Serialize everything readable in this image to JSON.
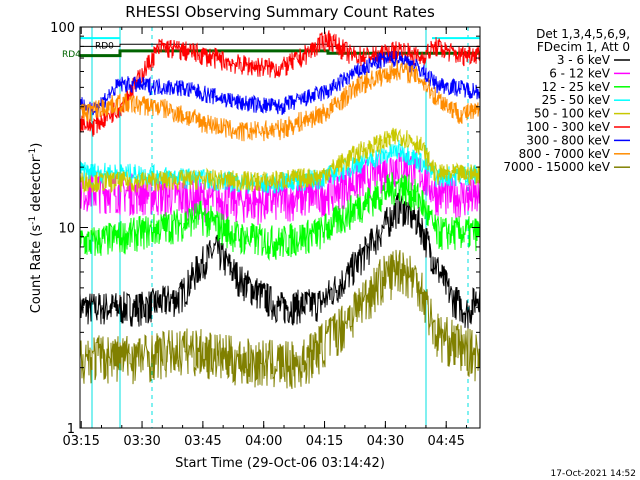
{
  "chart_data": {
    "type": "line",
    "title": "RHESSI Observing Summary Count Rates",
    "xlabel": "Start Time (29-Oct-06 03:14:42)",
    "ylabel": "Count Rate (s",
    "ylabel_sup": "-1",
    "ylabel_tail": " detector",
    "ylabel_close": ")",
    "y_scale": "log",
    "ylim": [
      1,
      100
    ],
    "xlim": [
      "03:14:42",
      "04:53:20"
    ],
    "x_ticks": [
      "03:15",
      "03:30",
      "03:45",
      "04:00",
      "04:15",
      "04:30",
      "04:45"
    ],
    "y_ticks": [
      "1",
      "10",
      "100"
    ],
    "timestamp": "17-Oct-2021 14:52",
    "legend_header": [
      "Det 1,3,4,5,6,9,",
      "FDecim 1, Att 0"
    ],
    "legend_placement": "right",
    "flags": [
      {
        "label": "RD0",
        "color": "#000000"
      },
      {
        "label": "RD4",
        "color": "#006400"
      }
    ],
    "series": [
      {
        "name": "3 - 6 keV",
        "color": "#000000",
        "values": [
          [
            15,
            4.0
          ],
          [
            25,
            4.5
          ],
          [
            30,
            6.5
          ],
          [
            34,
            7.8
          ],
          [
            40,
            5.5
          ],
          [
            50,
            4.0
          ],
          [
            60,
            4.2
          ],
          [
            66,
            5.5
          ],
          [
            75,
            9.5
          ],
          [
            80,
            13.0
          ],
          [
            85,
            10.5
          ],
          [
            89,
            6.5
          ],
          [
            93,
            4.5
          ],
          [
            97,
            3.8
          ],
          [
            100,
            4.8
          ]
        ]
      },
      {
        "name": "6 - 12 keV",
        "color": "#ff00ff",
        "values": [
          [
            3,
            15.5
          ],
          [
            15,
            15.0
          ],
          [
            30,
            14.0
          ],
          [
            45,
            13.5
          ],
          [
            60,
            14.5
          ],
          [
            70,
            17.5
          ],
          [
            80,
            21.0
          ],
          [
            85,
            19.0
          ],
          [
            89,
            15.0
          ],
          [
            100,
            14.0
          ]
        ]
      },
      {
        "name": "12 - 25 keV",
        "color": "#00ff00",
        "values": [
          [
            3,
            8.5
          ],
          [
            15,
            9.5
          ],
          [
            25,
            10.5
          ],
          [
            30,
            11.5
          ],
          [
            40,
            9.0
          ],
          [
            50,
            8.5
          ],
          [
            60,
            9.5
          ],
          [
            70,
            13.0
          ],
          [
            80,
            16.5
          ],
          [
            85,
            14.0
          ],
          [
            89,
            9.5
          ],
          [
            100,
            9.5
          ]
        ]
      },
      {
        "name": "25 - 50 keV",
        "color": "#00ffff",
        "values": [
          [
            0,
            19.0
          ],
          [
            15,
            18.5
          ],
          [
            30,
            17.5
          ],
          [
            45,
            16.5
          ],
          [
            60,
            17.5
          ],
          [
            70,
            21.0
          ],
          [
            80,
            24.5
          ],
          [
            85,
            21.5
          ],
          [
            89,
            18.0
          ],
          [
            100,
            18.5
          ]
        ]
      },
      {
        "name": "50 - 100 keV",
        "color": "#c8c800",
        "values": [
          [
            0,
            17.0
          ],
          [
            15,
            17.0
          ],
          [
            30,
            17.5
          ],
          [
            45,
            17.0
          ],
          [
            60,
            18.0
          ],
          [
            70,
            24.0
          ],
          [
            80,
            29.0
          ],
          [
            85,
            26.0
          ],
          [
            89,
            18.5
          ],
          [
            100,
            18.5
          ]
        ]
      },
      {
        "name": "100 - 300 keV",
        "color": "#ff0000",
        "values": [
          [
            0,
            34.0
          ],
          [
            3,
            32.0
          ],
          [
            10,
            40.0
          ],
          [
            20,
            80.0
          ],
          [
            28,
            75.0
          ],
          [
            40,
            65.0
          ],
          [
            50,
            62.0
          ],
          [
            55,
            70.0
          ],
          [
            62,
            88.0
          ],
          [
            68,
            72.0
          ],
          [
            75,
            72.0
          ],
          [
            80,
            78.0
          ],
          [
            85,
            70.0
          ],
          [
            89,
            80.0
          ],
          [
            95,
            72.0
          ],
          [
            100,
            75.0
          ]
        ]
      },
      {
        "name": "300 - 800 keV",
        "color": "#0000ff",
        "values": [
          [
            0,
            42.0
          ],
          [
            3,
            38.0
          ],
          [
            10,
            52.0
          ],
          [
            25,
            50.0
          ],
          [
            40,
            42.0
          ],
          [
            50,
            40.0
          ],
          [
            62,
            48.0
          ],
          [
            68,
            58.0
          ],
          [
            75,
            68.0
          ],
          [
            80,
            70.0
          ],
          [
            85,
            62.0
          ],
          [
            89,
            52.0
          ],
          [
            100,
            48.0
          ]
        ]
      },
      {
        "name": "800 - 7000 keV",
        "color": "#ff8c00",
        "values": [
          [
            0,
            37.0
          ],
          [
            10,
            42.0
          ],
          [
            20,
            40.0
          ],
          [
            30,
            34.0
          ],
          [
            40,
            30.0
          ],
          [
            50,
            31.0
          ],
          [
            62,
            38.0
          ],
          [
            70,
            52.0
          ],
          [
            80,
            62.0
          ],
          [
            85,
            56.0
          ],
          [
            89,
            45.0
          ],
          [
            95,
            37.0
          ],
          [
            100,
            38.0
          ]
        ]
      },
      {
        "name": "7000 - 15000 keV",
        "color": "#808000",
        "values": [
          [
            0,
            2.3
          ],
          [
            15,
            2.3
          ],
          [
            28,
            2.5
          ],
          [
            40,
            2.2
          ],
          [
            55,
            2.1
          ],
          [
            65,
            3.2
          ],
          [
            75,
            5.5
          ],
          [
            80,
            6.5
          ],
          [
            85,
            5.3
          ],
          [
            89,
            3.0
          ],
          [
            100,
            2.3
          ]
        ]
      }
    ]
  }
}
